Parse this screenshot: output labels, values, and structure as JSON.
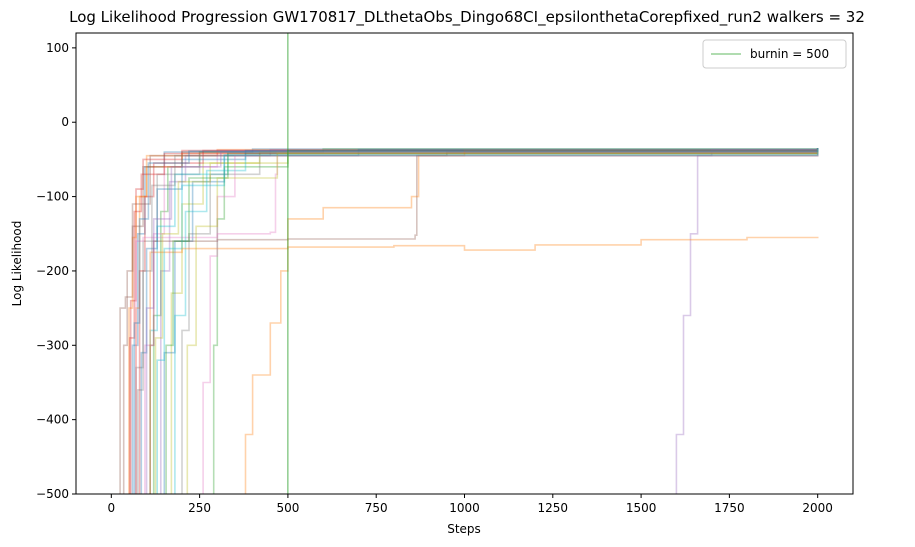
{
  "chart_data": {
    "type": "line",
    "title": "Log Likelihood Progression GW170817_DLthetaObs_Dingo68CI_epsilonthetaCorepfixed_run2 walkers = 32",
    "xlabel": "Steps",
    "ylabel": "Log Likelihood",
    "xlim": [
      -100,
      2100
    ],
    "ylim": [
      -500,
      120
    ],
    "xticks": [
      "0",
      "250",
      "500",
      "750",
      "1000",
      "1250",
      "1500",
      "1750",
      "2000"
    ],
    "yticks": [
      "100",
      "0",
      "−100",
      "−200",
      "−300",
      "−400",
      "−500"
    ],
    "xtick_values": [
      0,
      250,
      500,
      750,
      1000,
      1250,
      1500,
      1750,
      2000
    ],
    "ytick_values": [
      100,
      0,
      -100,
      -200,
      -300,
      -400,
      -500
    ],
    "grid": false,
    "legend": {
      "position": "top-right",
      "entries": [
        "burnin = 500"
      ]
    },
    "burnin": {
      "x": 500,
      "label": "burnin = 500",
      "color": "#2ca02c"
    },
    "walker_colors": [
      "#1f77b4",
      "#ff7f0e",
      "#2ca02c",
      "#d62728",
      "#9467bd",
      "#8c564b",
      "#e377c2",
      "#7f7f7f",
      "#bcbd22",
      "#17becf"
    ],
    "series_note": "32 walkers; approximate step traces",
    "series": [
      {
        "color": "#1f77b4",
        "points": [
          [
            40,
            -520
          ],
          [
            60,
            -300
          ],
          [
            75,
            -150
          ],
          [
            95,
            -60
          ],
          [
            150,
            -40
          ],
          [
            400,
            -36
          ],
          [
            2000,
            -35
          ]
        ]
      },
      {
        "color": "#ff7f0e",
        "points": [
          [
            60,
            -520
          ],
          [
            70,
            -250
          ],
          [
            80,
            -100
          ],
          [
            100,
            -45
          ],
          [
            300,
            -37
          ],
          [
            2000,
            -36
          ]
        ]
      },
      {
        "color": "#2ca02c",
        "points": [
          [
            100,
            -520
          ],
          [
            120,
            -260
          ],
          [
            140,
            -120
          ],
          [
            160,
            -60
          ],
          [
            250,
            -40
          ],
          [
            600,
            -36
          ],
          [
            2000,
            -35
          ]
        ]
      },
      {
        "color": "#d62728",
        "points": [
          [
            50,
            -520
          ],
          [
            55,
            -240
          ],
          [
            70,
            -90
          ],
          [
            90,
            -50
          ],
          [
            200,
            -38
          ],
          [
            2000,
            -36
          ]
        ]
      },
      {
        "color": "#9467bd",
        "points": [
          [
            120,
            -520
          ],
          [
            140,
            -200
          ],
          [
            165,
            -80
          ],
          [
            210,
            -45
          ],
          [
            450,
            -37
          ],
          [
            2000,
            -36
          ]
        ]
      },
      {
        "color": "#8c564b",
        "points": [
          [
            20,
            -520
          ],
          [
            25,
            -250
          ],
          [
            40,
            -235
          ],
          [
            60,
            -140
          ],
          [
            90,
            -60
          ],
          [
            200,
            -40
          ],
          [
            2000,
            -35
          ]
        ]
      },
      {
        "color": "#e377c2",
        "points": [
          [
            80,
            -520
          ],
          [
            95,
            -300
          ],
          [
            120,
            -150
          ],
          [
            150,
            -60
          ],
          [
            300,
            -38
          ],
          [
            2000,
            -36
          ]
        ]
      },
      {
        "color": "#7f7f7f",
        "points": [
          [
            55,
            -520
          ],
          [
            70,
            -330
          ],
          [
            90,
            -160
          ],
          [
            130,
            -70
          ],
          [
            250,
            -40
          ],
          [
            2000,
            -35
          ]
        ]
      },
      {
        "color": "#bcbd22",
        "points": [
          [
            150,
            -520
          ],
          [
            170,
            -230
          ],
          [
            200,
            -110
          ],
          [
            260,
            -55
          ],
          [
            500,
            -38
          ],
          [
            2000,
            -36
          ]
        ]
      },
      {
        "color": "#17becf",
        "points": [
          [
            90,
            -520
          ],
          [
            110,
            -280
          ],
          [
            130,
            -140
          ],
          [
            180,
            -70
          ],
          [
            330,
            -40
          ],
          [
            2000,
            -35
          ]
        ]
      },
      {
        "color": "#1f77b4",
        "points": [
          [
            130,
            -520
          ],
          [
            150,
            -310
          ],
          [
            180,
            -160
          ],
          [
            230,
            -80
          ],
          [
            320,
            -45
          ],
          [
            700,
            -37
          ],
          [
            2000,
            -36
          ]
        ]
      },
      {
        "color": "#ff7f0e",
        "points": [
          [
            40,
            -520
          ],
          [
            50,
            -250
          ],
          [
            60,
            -155
          ],
          [
            70,
            -100
          ],
          [
            100,
            -60
          ],
          [
            200,
            -42
          ],
          [
            2000,
            -36
          ]
        ]
      },
      {
        "color": "#2ca02c",
        "points": [
          [
            280,
            -520
          ],
          [
            290,
            -300
          ],
          [
            300,
            -130
          ],
          [
            320,
            -60
          ],
          [
            500,
            -38
          ],
          [
            2000,
            -35
          ]
        ]
      },
      {
        "color": "#d62728",
        "points": [
          [
            70,
            -520
          ],
          [
            80,
            -200
          ],
          [
            95,
            -100
          ],
          [
            120,
            -55
          ],
          [
            260,
            -38
          ],
          [
            2000,
            -36
          ]
        ]
      },
      {
        "color": "#9467bd",
        "points": [
          [
            1575,
            -520
          ],
          [
            1600,
            -420
          ],
          [
            1620,
            -260
          ],
          [
            1640,
            -150
          ],
          [
            1660,
            -45
          ],
          [
            1700,
            -37
          ],
          [
            2000,
            -36
          ]
        ]
      },
      {
        "color": "#8c564b",
        "points": [
          [
            100,
            -520
          ],
          [
            110,
            -300
          ],
          [
            120,
            -160
          ],
          [
            300,
            -158
          ],
          [
            500,
            -157
          ],
          [
            860,
            -152
          ],
          [
            865,
            -45
          ],
          [
            950,
            -40
          ],
          [
            2000,
            -36
          ]
        ]
      },
      {
        "color": "#e377c2",
        "points": [
          [
            60,
            -520
          ],
          [
            70,
            -160
          ],
          [
            90,
            -155
          ],
          [
            300,
            -150
          ],
          [
            450,
            -148
          ],
          [
            465,
            -70
          ],
          [
            470,
            -40
          ],
          [
            2000,
            -36
          ]
        ]
      },
      {
        "color": "#7f7f7f",
        "points": [
          [
            180,
            -520
          ],
          [
            200,
            -280
          ],
          [
            220,
            -150
          ],
          [
            280,
            -70
          ],
          [
            420,
            -40
          ],
          [
            2000,
            -35
          ]
        ]
      },
      {
        "color": "#bcbd22",
        "points": [
          [
            110,
            -520
          ],
          [
            125,
            -290
          ],
          [
            145,
            -150
          ],
          [
            190,
            -80
          ],
          [
            280,
            -55
          ],
          [
            420,
            -40
          ],
          [
            2000,
            -36
          ]
        ]
      },
      {
        "color": "#17becf",
        "points": [
          [
            160,
            -520
          ],
          [
            180,
            -260
          ],
          [
            210,
            -120
          ],
          [
            270,
            -65
          ],
          [
            380,
            -42
          ],
          [
            2000,
            -35
          ]
        ]
      },
      {
        "color": "#ff7f0e",
        "points": [
          [
            375,
            -520
          ],
          [
            380,
            -420
          ],
          [
            400,
            -340
          ],
          [
            450,
            -270
          ],
          [
            480,
            -200
          ],
          [
            500,
            -130
          ],
          [
            600,
            -115
          ],
          [
            850,
            -100
          ],
          [
            870,
            -45
          ],
          [
            1000,
            -38
          ],
          [
            2000,
            -37
          ]
        ]
      },
      {
        "color": "#ff7f0e",
        "points": [
          [
            100,
            -520
          ],
          [
            110,
            -175
          ],
          [
            200,
            -170
          ],
          [
            500,
            -168
          ],
          [
            800,
            -166
          ],
          [
            1000,
            -172
          ],
          [
            1200,
            -165
          ],
          [
            1500,
            -158
          ],
          [
            1800,
            -155
          ],
          [
            2000,
            -154
          ]
        ]
      },
      {
        "color": "#1f77b4",
        "points": [
          [
            75,
            -520
          ],
          [
            85,
            -310
          ],
          [
            100,
            -170
          ],
          [
            130,
            -90
          ],
          [
            200,
            -50
          ],
          [
            380,
            -38
          ],
          [
            2000,
            -35
          ]
        ]
      },
      {
        "color": "#2ca02c",
        "points": [
          [
            140,
            -520
          ],
          [
            155,
            -300
          ],
          [
            175,
            -160
          ],
          [
            220,
            -75
          ],
          [
            330,
            -42
          ],
          [
            2000,
            -36
          ]
        ]
      },
      {
        "color": "#d62728",
        "points": [
          [
            45,
            -520
          ],
          [
            52,
            -290
          ],
          [
            65,
            -120
          ],
          [
            85,
            -70
          ],
          [
            150,
            -42
          ],
          [
            2000,
            -35
          ]
        ]
      },
      {
        "color": "#9467bd",
        "points": [
          [
            85,
            -520
          ],
          [
            100,
            -250
          ],
          [
            120,
            -130
          ],
          [
            170,
            -60
          ],
          [
            310,
            -40
          ],
          [
            2000,
            -36
          ]
        ]
      },
      {
        "color": "#8c564b",
        "points": [
          [
            30,
            -520
          ],
          [
            35,
            -300
          ],
          [
            45,
            -200
          ],
          [
            60,
            -110
          ],
          [
            110,
            -45
          ],
          [
            2000,
            -35
          ]
        ]
      },
      {
        "color": "#e377c2",
        "points": [
          [
            250,
            -520
          ],
          [
            260,
            -350
          ],
          [
            280,
            -180
          ],
          [
            300,
            -100
          ],
          [
            350,
            -45
          ],
          [
            2000,
            -36
          ]
        ]
      },
      {
        "color": "#7f7f7f",
        "points": [
          [
            65,
            -520
          ],
          [
            75,
            -360
          ],
          [
            90,
            -200
          ],
          [
            115,
            -85
          ],
          [
            180,
            -45
          ],
          [
            2000,
            -35
          ]
        ]
      },
      {
        "color": "#bcbd22",
        "points": [
          [
            200,
            -520
          ],
          [
            215,
            -300
          ],
          [
            240,
            -140
          ],
          [
            300,
            -75
          ],
          [
            470,
            -42
          ],
          [
            2000,
            -36
          ]
        ]
      },
      {
        "color": "#17becf",
        "points": [
          [
            115,
            -520
          ],
          [
            130,
            -320
          ],
          [
            150,
            -170
          ],
          [
            200,
            -85
          ],
          [
            320,
            -44
          ],
          [
            2000,
            -35
          ]
        ]
      },
      {
        "color": "#1f77b4",
        "points": [
          [
            55,
            -520
          ],
          [
            65,
            -270
          ],
          [
            80,
            -130
          ],
          [
            105,
            -55
          ],
          [
            220,
            -39
          ],
          [
            2000,
            -35
          ]
        ]
      }
    ]
  }
}
